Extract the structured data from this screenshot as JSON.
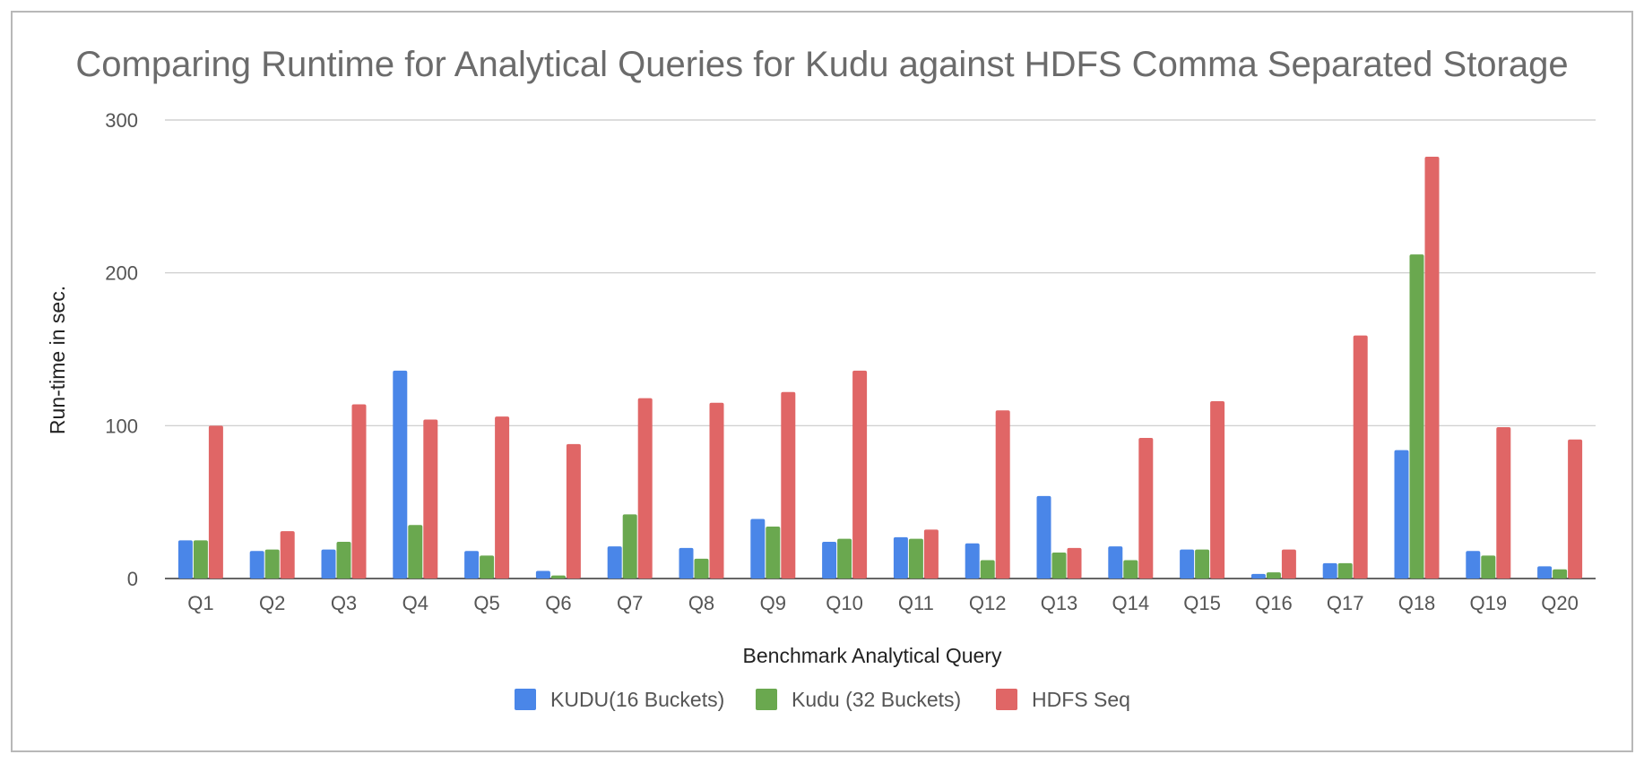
{
  "chart_data": {
    "type": "bar",
    "title": "Comparing Runtime for Analytical Queries for Kudu against HDFS Comma Separated Storage",
    "xlabel": "Benchmark Analytical Query",
    "ylabel": "Run-time in sec.",
    "ylim": [
      0,
      300
    ],
    "yticks": [
      0,
      100,
      200,
      300
    ],
    "grid": true,
    "legend_position": "bottom",
    "categories": [
      "Q1",
      "Q2",
      "Q3",
      "Q4",
      "Q5",
      "Q6",
      "Q7",
      "Q8",
      "Q9",
      "Q10",
      "Q11",
      "Q12",
      "Q13",
      "Q14",
      "Q15",
      "Q16",
      "Q17",
      "Q18",
      "Q19",
      "Q20"
    ],
    "series": [
      {
        "name": "KUDU(16 Buckets)",
        "color": "#4a86e8",
        "values": [
          25,
          18,
          19,
          136,
          18,
          5,
          21,
          20,
          39,
          24,
          27,
          23,
          54,
          21,
          19,
          3,
          10,
          84,
          18,
          8
        ]
      },
      {
        "name": "Kudu (32 Buckets)",
        "color": "#6aa84f",
        "values": [
          25,
          19,
          24,
          35,
          15,
          2,
          42,
          13,
          34,
          26,
          26,
          12,
          17,
          12,
          19,
          4,
          10,
          212,
          15,
          6
        ]
      },
      {
        "name": "HDFS Seq",
        "color": "#e06666",
        "values": [
          100,
          31,
          114,
          104,
          106,
          88,
          118,
          115,
          122,
          136,
          32,
          110,
          20,
          92,
          116,
          19,
          159,
          276,
          99,
          91
        ]
      }
    ]
  }
}
